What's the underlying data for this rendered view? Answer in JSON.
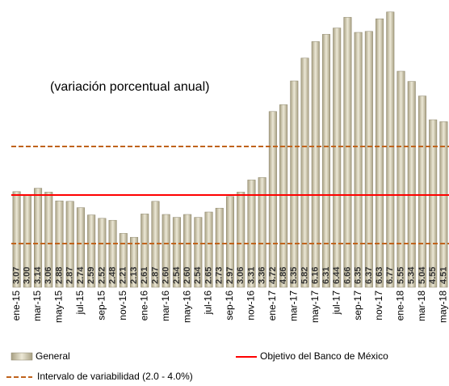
{
  "chart_data": {
    "type": "bar",
    "annotation": "(variación porcentual anual)",
    "categories": [
      "ene-15",
      null,
      "mar-15",
      null,
      "may-15",
      null,
      "jul-15",
      null,
      "sep-15",
      null,
      "nov-15",
      null,
      "ene-16",
      null,
      "mar-16",
      null,
      "may-16",
      null,
      "jul-16",
      null,
      "sep-16",
      null,
      "nov-16",
      null,
      "ene-17",
      null,
      "mar-17",
      null,
      "may-17",
      null,
      "jul-17",
      null,
      "sep-17",
      null,
      "nov-17",
      null,
      "ene-18",
      null,
      "mar-18",
      null,
      "may-18"
    ],
    "series": [
      {
        "name": "General",
        "color": "#d6d0b4",
        "values": [
          3.07,
          3.0,
          3.14,
          3.06,
          2.88,
          2.87,
          2.74,
          2.59,
          2.52,
          2.48,
          2.21,
          2.13,
          2.61,
          2.87,
          2.6,
          2.54,
          2.6,
          2.54,
          2.65,
          2.73,
          2.97,
          3.06,
          3.31,
          3.36,
          4.72,
          4.86,
          5.35,
          5.82,
          6.16,
          6.31,
          6.44,
          6.66,
          6.35,
          6.37,
          6.63,
          6.77,
          5.55,
          5.34,
          5.04,
          4.55,
          4.51
        ],
        "value_labels": [
          "3.07",
          "3.00",
          "3.14",
          "3.06",
          "2.88",
          "2.87",
          "2.74",
          "2.59",
          "2.52",
          "2.48",
          "2.21",
          "2.13",
          "2.61",
          "2.87",
          "2.60",
          "2.54",
          "2.60",
          "2.54",
          "2.65",
          "2.73",
          "2.97",
          "3.06",
          "3.31",
          "3.36",
          "4.72",
          "4.86",
          "5.35",
          "5.82",
          "6.16",
          "6.31",
          "6.44",
          "6.66",
          "6.35",
          "6.37",
          "6.63",
          "6.77",
          "5.55",
          "5.34",
          "5.04",
          "4.55",
          "4.51"
        ]
      }
    ],
    "target": {
      "name": "Objetivo del Banco de México",
      "value": 3,
      "color": "#ff0000"
    },
    "interval": {
      "name": "Intervalo de variabilidad (2.0 - 4.0%)",
      "values": [
        2,
        4
      ],
      "color": "#c0631c"
    },
    "ylim": [
      1.1,
      6.8
    ]
  }
}
